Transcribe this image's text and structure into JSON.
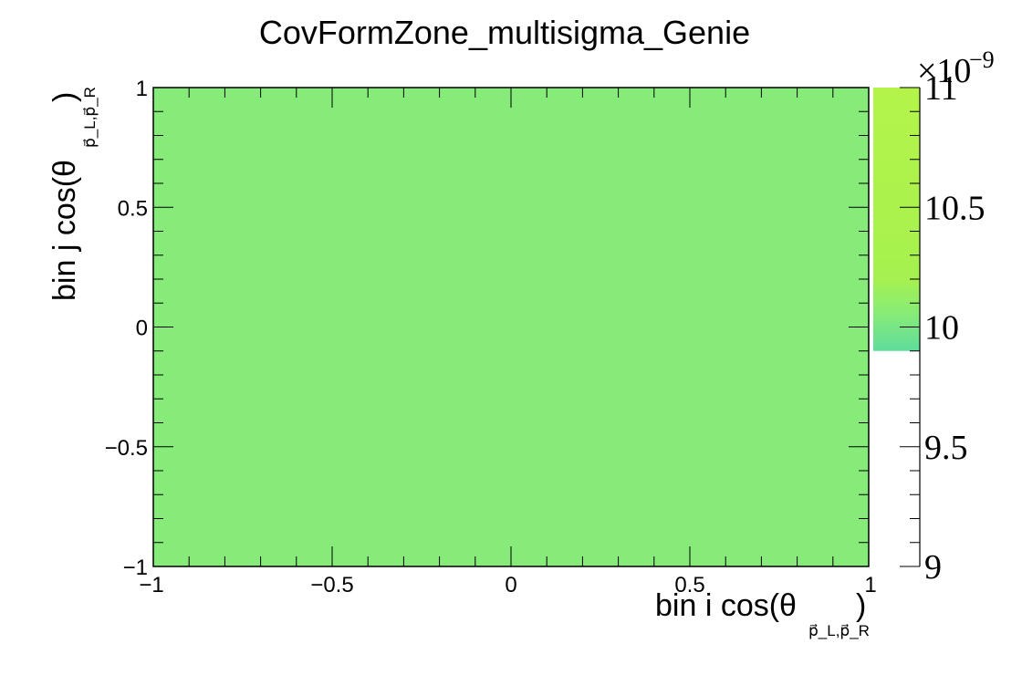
{
  "chart_data": {
    "type": "heatmap",
    "title": "CovFormZone_multisigma_Genie",
    "xlabel_main": "bin i cos(θ",
    "xlabel_sub": "p⃗_L,p⃗_R",
    "xlabel_close": ")",
    "ylabel_main": "bin j cos(θ",
    "ylabel_sub": "p⃗_L,p⃗_R",
    "ylabel_close": ")",
    "xlim": [
      -1,
      1
    ],
    "ylim": [
      -1,
      1
    ],
    "x_ticks": [
      -1,
      -0.5,
      0,
      0.5,
      1
    ],
    "y_ticks": [
      -1,
      -0.5,
      0,
      0.5,
      1
    ],
    "x_tick_labels": [
      "−1",
      "−0.5",
      "0",
      "0.5",
      "1"
    ],
    "y_tick_labels": [
      "−1",
      "−0.5",
      "0",
      "0.5",
      "1"
    ],
    "cells": [
      {
        "x": [
          -1,
          1
        ],
        "y": [
          -1,
          1
        ],
        "value": 9.98e-09,
        "color": "#86eb79"
      }
    ],
    "zlim": [
      9,
      11
    ],
    "z_exponent_label": "×10",
    "z_exponent_power": "−9",
    "z_ticks": [
      9,
      9.5,
      10,
      10.5,
      11
    ],
    "z_tick_labels": [
      "9",
      "9.5",
      "10",
      "10.5",
      "11"
    ],
    "palette_from": 9.9,
    "palette": [
      {
        "at": 9.9,
        "color": "#5fdc9c"
      },
      {
        "at": 10.05,
        "color": "#86eb79"
      },
      {
        "at": 10.2,
        "color": "#a6f14f"
      },
      {
        "at": 11,
        "color": "#b4f44a"
      }
    ],
    "colors": {
      "frame": "#000000",
      "background": "#ffffff"
    }
  }
}
